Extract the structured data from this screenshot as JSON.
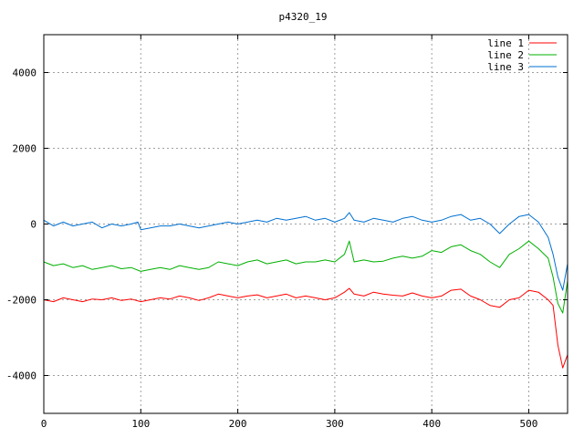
{
  "chart_data": {
    "type": "line",
    "title": "p4320_19",
    "xlabel": "",
    "ylabel": "",
    "xlim": [
      0,
      540
    ],
    "ylim": [
      -5000,
      5000
    ],
    "xticks": [
      0,
      100,
      200,
      300,
      400,
      500
    ],
    "yticks": [
      -4000,
      -2000,
      0,
      2000,
      4000
    ],
    "grid": true,
    "legend_position": "top-right",
    "series": [
      {
        "name": "line 1",
        "color": "#ff0000",
        "x": [
          0,
          10,
          20,
          30,
          40,
          50,
          60,
          70,
          80,
          90,
          100,
          110,
          120,
          130,
          140,
          150,
          160,
          170,
          180,
          190,
          200,
          210,
          220,
          230,
          240,
          250,
          260,
          270,
          280,
          290,
          300,
          310,
          315,
          320,
          330,
          340,
          350,
          360,
          370,
          380,
          390,
          400,
          410,
          420,
          430,
          440,
          450,
          460,
          470,
          480,
          490,
          500,
          510,
          520,
          525,
          530,
          535,
          540
        ],
        "y": [
          -2000,
          -2050,
          -1950,
          -2000,
          -2050,
          -1980,
          -2000,
          -1950,
          -2020,
          -1980,
          -2050,
          -2000,
          -1950,
          -1980,
          -1900,
          -1950,
          -2020,
          -1950,
          -1850,
          -1900,
          -1950,
          -1900,
          -1870,
          -1950,
          -1900,
          -1850,
          -1950,
          -1900,
          -1950,
          -2000,
          -1950,
          -1800,
          -1700,
          -1850,
          -1900,
          -1800,
          -1850,
          -1880,
          -1900,
          -1820,
          -1900,
          -1950,
          -1900,
          -1750,
          -1720,
          -1900,
          -2000,
          -2150,
          -2200,
          -2000,
          -1950,
          -1750,
          -1800,
          -2000,
          -2150,
          -3200,
          -3800,
          -3450
        ]
      },
      {
        "name": "line 2",
        "color": "#00b000",
        "x": [
          0,
          10,
          20,
          30,
          40,
          50,
          60,
          70,
          80,
          90,
          100,
          110,
          120,
          130,
          140,
          150,
          160,
          170,
          180,
          190,
          200,
          210,
          220,
          230,
          240,
          250,
          260,
          270,
          280,
          290,
          300,
          310,
          315,
          320,
          330,
          340,
          350,
          360,
          370,
          380,
          390,
          400,
          410,
          420,
          430,
          440,
          450,
          460,
          470,
          480,
          490,
          500,
          510,
          520,
          525,
          530,
          535,
          540
        ],
        "y": [
          -1000,
          -1100,
          -1050,
          -1150,
          -1100,
          -1200,
          -1150,
          -1100,
          -1180,
          -1150,
          -1250,
          -1200,
          -1150,
          -1200,
          -1100,
          -1150,
          -1200,
          -1150,
          -1000,
          -1050,
          -1100,
          -1000,
          -950,
          -1050,
          -1000,
          -950,
          -1050,
          -1000,
          -1000,
          -950,
          -1000,
          -800,
          -450,
          -1000,
          -950,
          -1000,
          -980,
          -900,
          -850,
          -900,
          -850,
          -700,
          -750,
          -600,
          -550,
          -700,
          -800,
          -1000,
          -1150,
          -800,
          -650,
          -450,
          -650,
          -900,
          -1400,
          -2100,
          -2350,
          -1500
        ]
      },
      {
        "name": "line 3",
        "color": "#0070d0",
        "x": [
          0,
          10,
          20,
          30,
          40,
          50,
          60,
          70,
          80,
          90,
          97,
          100,
          110,
          120,
          130,
          140,
          150,
          160,
          170,
          180,
          190,
          200,
          210,
          220,
          230,
          240,
          250,
          260,
          270,
          280,
          290,
          300,
          310,
          315,
          320,
          330,
          340,
          350,
          360,
          370,
          380,
          390,
          400,
          410,
          420,
          430,
          440,
          450,
          460,
          470,
          480,
          490,
          500,
          510,
          520,
          525,
          530,
          535,
          540
        ],
        "y": [
          100,
          -50,
          50,
          -50,
          0,
          50,
          -100,
          0,
          -50,
          0,
          50,
          -150,
          -100,
          -50,
          -50,
          0,
          -50,
          -100,
          -50,
          0,
          50,
          0,
          50,
          100,
          50,
          150,
          100,
          150,
          200,
          100,
          150,
          50,
          150,
          300,
          100,
          50,
          150,
          100,
          50,
          150,
          200,
          100,
          50,
          100,
          200,
          250,
          100,
          150,
          0,
          -250,
          0,
          200,
          250,
          50,
          -350,
          -800,
          -1400,
          -1750,
          -1050
        ]
      }
    ]
  }
}
